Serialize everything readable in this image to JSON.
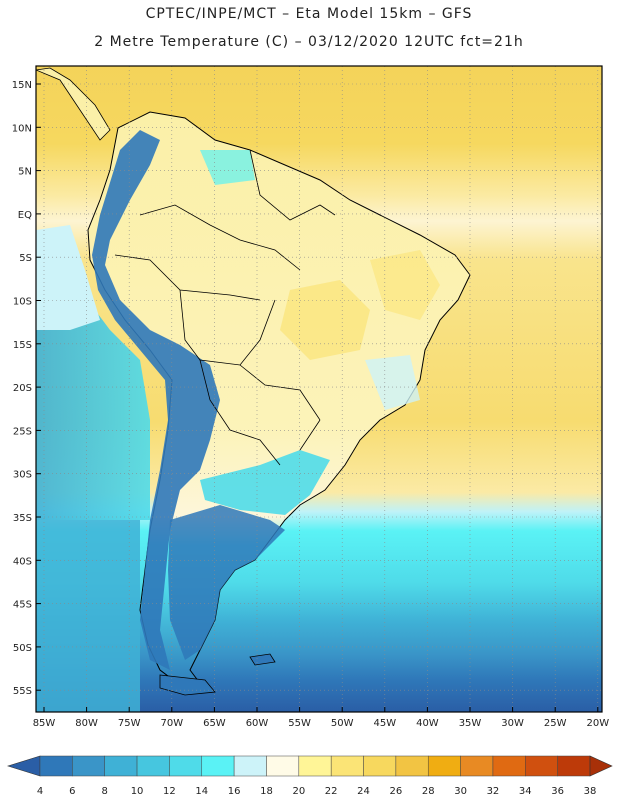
{
  "header": {
    "line1": "CPTEC/INPE/MCT –  Eta Model 15km – GFS",
    "line2": "2 Metre Temperature (C) – 03/12/2020 12UTC fct=21h"
  },
  "axes": {
    "lat_labels": [
      "15N",
      "10N",
      "5N",
      "EQ",
      "5S",
      "10S",
      "15S",
      "20S",
      "25S",
      "30S",
      "35S",
      "40S",
      "45S",
      "50S",
      "55S"
    ],
    "lon_labels": [
      "85W",
      "80W",
      "75W",
      "70W",
      "65W",
      "60W",
      "55W",
      "50W",
      "45W",
      "40W",
      "35W",
      "30W",
      "25W",
      "20W"
    ]
  },
  "colorbar": {
    "ticks": [
      "4",
      "6",
      "8",
      "10",
      "12",
      "14",
      "16",
      "18",
      "20",
      "22",
      "24",
      "26",
      "28",
      "30",
      "32",
      "34",
      "36",
      "38"
    ],
    "colors": [
      "#2a5ea6",
      "#2f78b9",
      "#3a95c8",
      "#3fb1d6",
      "#46c6df",
      "#4fdbe9",
      "#5af2f5",
      "#cdf3f9",
      "#fffbe7",
      "#fff597",
      "#fbe476",
      "#f7d85e",
      "#f2c443",
      "#f0ad12",
      "#e88a23",
      "#e06a12",
      "#d0500f",
      "#bd3a09",
      "#a83008"
    ]
  },
  "map_data": {
    "variable": "2 Metre Temperature",
    "unit": "C",
    "region": "South America",
    "ocean_colors": {
      "north_atlantic": "#f4d35a",
      "equatorial_band": "#fbe79a",
      "south_atlantic": "#f6d96a",
      "southern_cool": "#5af2f5",
      "southern_cold": "#3a95c8",
      "polar": "#2a5ea6"
    },
    "land_colors": {
      "amazon": "#fbf0a8",
      "andes": "#2f78b9",
      "patagonia": "#2f78b9",
      "pampas": "#4fdbe9"
    }
  }
}
